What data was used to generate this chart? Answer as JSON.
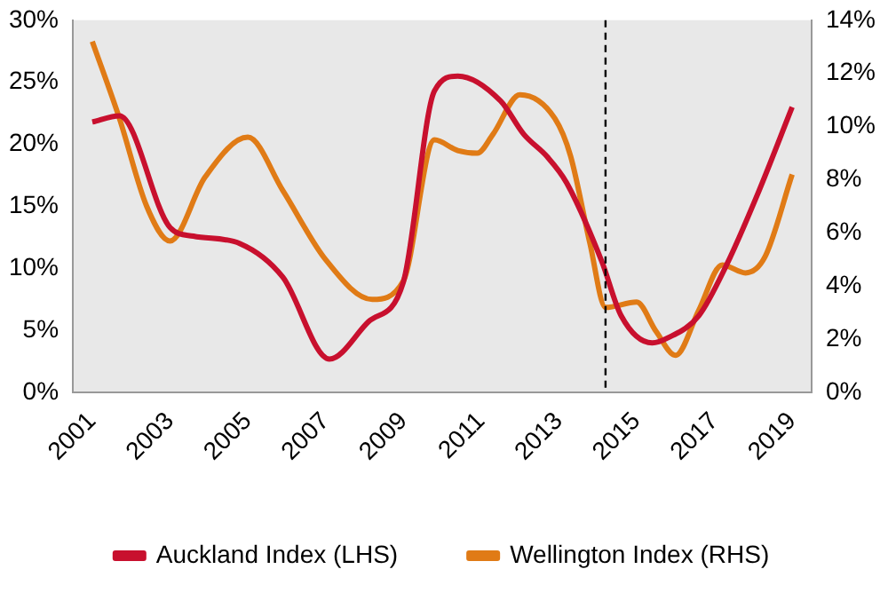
{
  "chart_data": {
    "type": "line",
    "xlim": [
      2000.5,
      2019.5
    ],
    "xticks": [
      2001,
      2003,
      2005,
      2007,
      2009,
      2011,
      2013,
      2015,
      2017,
      2019
    ],
    "ylim": [
      0,
      30
    ],
    "yticks": [
      {
        "value": 0,
        "label": "0%"
      },
      {
        "value": 5,
        "label": "5%"
      },
      {
        "value": 10,
        "label": "10%"
      },
      {
        "value": 15,
        "label": "15%"
      },
      {
        "value": 20,
        "label": "20%"
      },
      {
        "value": 25,
        "label": "25%"
      },
      {
        "value": 30,
        "label": "30%"
      }
    ],
    "y2lim": [
      0,
      14
    ],
    "y2ticks": [
      {
        "value": 0,
        "label": "0%"
      },
      {
        "value": 2,
        "label": "2%"
      },
      {
        "value": 4,
        "label": "4%"
      },
      {
        "value": 6,
        "label": "6%"
      },
      {
        "value": 8,
        "label": "8%"
      },
      {
        "value": 10,
        "label": "10%"
      },
      {
        "value": 12,
        "label": "12%"
      },
      {
        "value": 14,
        "label": "14%"
      }
    ],
    "series": [
      {
        "name": "Auckland Index (LHS)",
        "color": "#c8102e",
        "axis": "y",
        "x": [
          2001.0,
          2001.7,
          2003.0,
          2003.6,
          2004.8,
          2005.9,
          2007.1,
          2008.1,
          2009.0,
          2009.8,
          2010.4,
          2011.5,
          2012.1,
          2012.7,
          2013.2,
          2014.1,
          2014.6,
          2015.4,
          2015.8,
          2016.6,
          2017.3,
          2018.1,
          2019.0
        ],
        "values": [
          21.8,
          22.3,
          13.3,
          12.6,
          12.0,
          9.3,
          2.7,
          5.7,
          8.9,
          24.3,
          25.5,
          23.5,
          20.8,
          19.0,
          16.9,
          10.6,
          6.2,
          4.0,
          4.4,
          6.2,
          10.2,
          15.9,
          23.0
        ]
      },
      {
        "name": "Wellington Index (RHS)",
        "color": "#e07b16",
        "axis": "y2",
        "x": [
          2001.0,
          2001.7,
          2002.4,
          2003.0,
          2003.9,
          2005.0,
          2005.9,
          2007.0,
          2008.2,
          2009.0,
          2009.8,
          2010.4,
          2010.9,
          2011.3,
          2012.0,
          2012.9,
          2013.3,
          2013.8,
          2014.2,
          2015.0,
          2015.5,
          2016.0,
          2016.6,
          2017.2,
          2017.8,
          2018.3,
          2019.0
        ],
        "values": [
          13.2,
          10.3,
          7.0,
          5.7,
          8.1,
          9.6,
          7.6,
          5.0,
          3.5,
          4.2,
          9.5,
          9.1,
          9.0,
          9.7,
          11.2,
          10.3,
          8.9,
          5.6,
          3.2,
          3.4,
          2.3,
          1.4,
          3.1,
          4.8,
          4.5,
          5.1,
          8.2
        ]
      }
    ],
    "ref_lines": [
      {
        "axis": "x",
        "value": 2014.2,
        "color": "#000000",
        "line_style": "dashed"
      }
    ],
    "marker": "none",
    "grid": false,
    "legend": "bottom"
  }
}
